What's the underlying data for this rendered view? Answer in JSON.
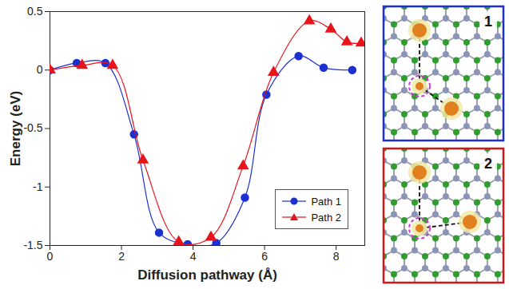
{
  "chart_data": {
    "type": "line",
    "x_label": "Diffusion pathway (Å)",
    "y_label": "Energy (eV)",
    "xlim": [
      0,
      8.8
    ],
    "xticks": [
      0,
      2,
      4,
      6,
      8
    ],
    "ylim": [
      -1.5,
      0.5
    ],
    "yticks": [
      -1.5,
      -1,
      -0.5,
      0,
      0.5
    ],
    "legend": "lower right",
    "series": [
      {
        "name": "Path 1",
        "color": "#1c2fd0",
        "marker": "circle",
        "line_style": "solid",
        "x": [
          0,
          0.75,
          1.55,
          2.35,
          3.05,
          3.85,
          4.65,
          5.45,
          6.05,
          6.95,
          7.65,
          8.45
        ],
        "values": [
          0,
          0.06,
          0.06,
          -0.55,
          -1.39,
          -1.49,
          -1.48,
          -1.09,
          -0.21,
          0.12,
          0.02,
          0.0
        ]
      },
      {
        "name": "Path 2",
        "color": "#e8141b",
        "marker": "triangle",
        "line_style": "solid",
        "x": [
          0,
          0.9,
          1.75,
          2.6,
          3.6,
          4.5,
          5.4,
          6.25,
          7.25,
          7.85,
          8.3,
          8.7
        ],
        "values": [
          0,
          0.04,
          0.04,
          -0.77,
          -1.47,
          -1.43,
          -0.82,
          -0.02,
          0.42,
          0.35,
          0.24,
          0.23
        ]
      }
    ],
    "annotations": [
      {
        "text": "1",
        "color": "#1c2fd0"
      },
      {
        "text": "2",
        "color": "#d01818"
      }
    ]
  }
}
